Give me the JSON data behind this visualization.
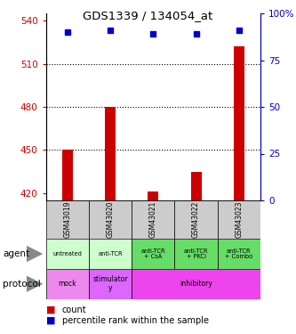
{
  "title": "GDS1339 / 134054_at",
  "samples": [
    "GSM43019",
    "GSM43020",
    "GSM43021",
    "GSM43022",
    "GSM43023"
  ],
  "counts": [
    450,
    480,
    421,
    435,
    522
  ],
  "percentiles": [
    90,
    91,
    89,
    89,
    91
  ],
  "ylim_left": [
    415,
    545
  ],
  "ylim_right": [
    0,
    100
  ],
  "yticks_left": [
    420,
    450,
    480,
    510,
    540
  ],
  "yticks_right": [
    0,
    25,
    50,
    75,
    100
  ],
  "bar_color": "#cc0000",
  "dot_color": "#0000cc",
  "agent_labels": [
    "untreated",
    "anti-TCR",
    "anti-TCR\n+ CsA",
    "anti-TCR\n+ PKCi",
    "anti-TCR\n+ Combo"
  ],
  "agent_colors": [
    "#ccffcc",
    "#ccffcc",
    "#66dd66",
    "#66dd66",
    "#66dd66"
  ],
  "protocol_spans": [
    [
      0,
      1,
      "mock",
      "#ee88ee"
    ],
    [
      1,
      2,
      "stimulator\ny",
      "#dd66ff"
    ],
    [
      2,
      5,
      "inhibitory",
      "#ee44ee"
    ]
  ],
  "gsm_bg_color": "#cccccc",
  "left_label_color": "#cc0000",
  "right_label_color": "#0000cc",
  "legend_count_color": "#cc0000",
  "legend_pct_color": "#0000cc",
  "dotted_lines": [
    510,
    480,
    450
  ]
}
